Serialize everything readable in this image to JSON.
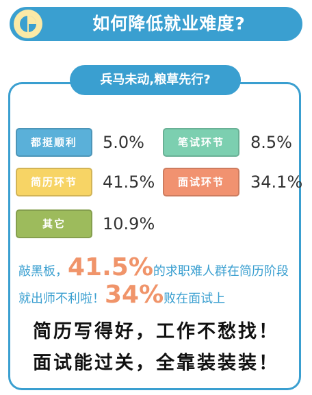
{
  "header": {
    "title": "如何降低就业难度?"
  },
  "subtitle": "兵马未动,粮草先行?",
  "colors": {
    "accent": "#3a9fd0",
    "highlight": "#f0946a",
    "badge_bg": "#fbe9a6",
    "tile_blue": "#5ab0d9",
    "tile_green": "#7ccfb0",
    "tile_yellow": "#f7d465",
    "tile_orange": "#f19270",
    "tile_olive": "#9dbb5c"
  },
  "chart_data": {
    "type": "table",
    "categories": [
      "都挺顺利",
      "笔试环节",
      "简历环节",
      "面试环节",
      "其它"
    ],
    "values": [
      5.0,
      8.5,
      41.5,
      34.1,
      10.9
    ],
    "value_labels": [
      "5.0%",
      "8.5%",
      "41.5%",
      "34.1%",
      "10.9%"
    ],
    "unit": "%"
  },
  "summary": {
    "line1_prefix": "敲黑板，",
    "line1_highlight": "41.5%",
    "line1_suffix": "的求职难人群在简历阶段",
    "line2_prefix": "就出师不利啦！",
    "line2_highlight": "34%",
    "line2_suffix": "败在面试上"
  },
  "slogans": [
    "简历写得好，工作不愁找！",
    "面试能过关，全靠装装装！"
  ]
}
